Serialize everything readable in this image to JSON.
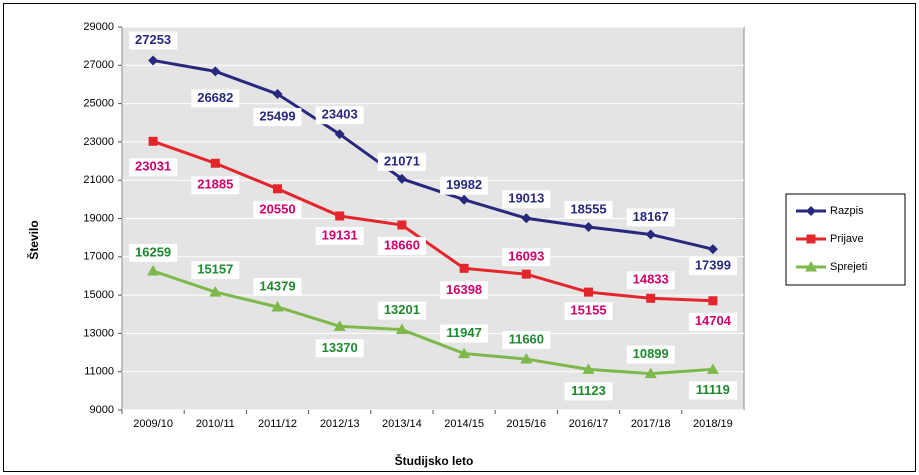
{
  "chart_data": {
    "type": "line",
    "categories": [
      "2009/10",
      "2010/11",
      "2011/12",
      "2012/13",
      "2013/14",
      "2014/15",
      "2015/16",
      "2016/17",
      "2017/18",
      "2018/19"
    ],
    "series": [
      {
        "name": "Razpis",
        "color": "#28287e",
        "label_color": "#28287e",
        "marker": "diamond",
        "values": [
          27253,
          26682,
          25499,
          23403,
          21071,
          19982,
          19013,
          18555,
          18167,
          17399
        ]
      },
      {
        "name": "Prijave",
        "color": "#e3262c",
        "label_color": "#d1006b",
        "marker": "square",
        "values": [
          23031,
          21885,
          20550,
          19131,
          18660,
          16398,
          16093,
          15155,
          14833,
          14704
        ]
      },
      {
        "name": "Sprejeti",
        "color": "#7cb84a",
        "label_color": "#1d8a2e",
        "marker": "triangle",
        "values": [
          16259,
          15157,
          14379,
          13370,
          13201,
          11947,
          11660,
          11123,
          10899,
          11119
        ]
      }
    ],
    "xlabel": "Študijsko leto",
    "ylabel": "Število",
    "ylim": [
      9000,
      29000
    ],
    "yticks": [
      9000,
      11000,
      13000,
      15000,
      17000,
      19000,
      21000,
      23000,
      25000,
      27000,
      29000
    ],
    "grid": true,
    "legend": "right"
  }
}
